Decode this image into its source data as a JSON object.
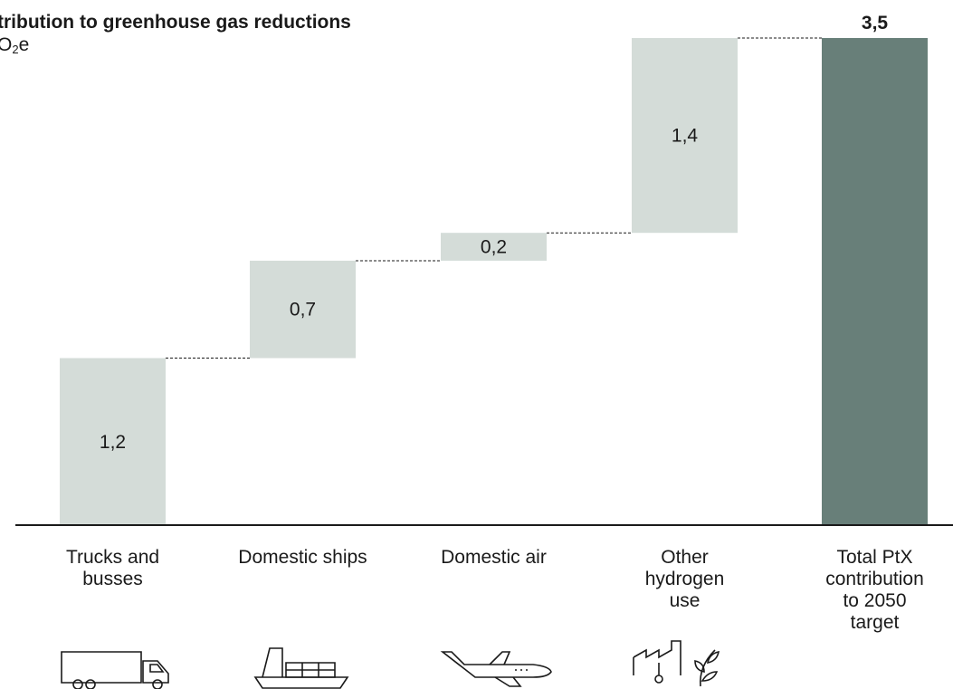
{
  "chart_data": {
    "type": "bar",
    "subtype": "waterfall",
    "title": "tribution to greenhouse gas reductions",
    "unit_prefix": "O",
    "unit_sub": "2",
    "unit_suffix": "e",
    "categories": [
      "Trucks and busses",
      "Domestic ships",
      "Domestic air",
      "Other hydrogen use",
      "Total PtX contribution to 2050 target"
    ],
    "category_lines": [
      [
        "Trucks and",
        "busses"
      ],
      [
        "Domestic ships"
      ],
      [
        "Domestic air"
      ],
      [
        "Other",
        "hydrogen",
        "use"
      ],
      [
        "Total PtX",
        "contribution",
        "to 2050",
        "target"
      ]
    ],
    "values": [
      1.2,
      0.7,
      0.2,
      1.4,
      3.5
    ],
    "labels": [
      "1,2",
      "0,7",
      "0,2",
      "1,4",
      "3,5"
    ],
    "total_index": 4,
    "ylim": [
      0,
      3.5
    ],
    "grid": false,
    "connectors": true,
    "colors": {
      "step": "#d4dcd8",
      "total": "#687f79",
      "axis": "#1a1a1a",
      "connector": "#1a1a1a"
    },
    "icons": [
      "truck-icon",
      "ship-icon",
      "airplane-icon",
      "factory-plant-icon"
    ]
  }
}
